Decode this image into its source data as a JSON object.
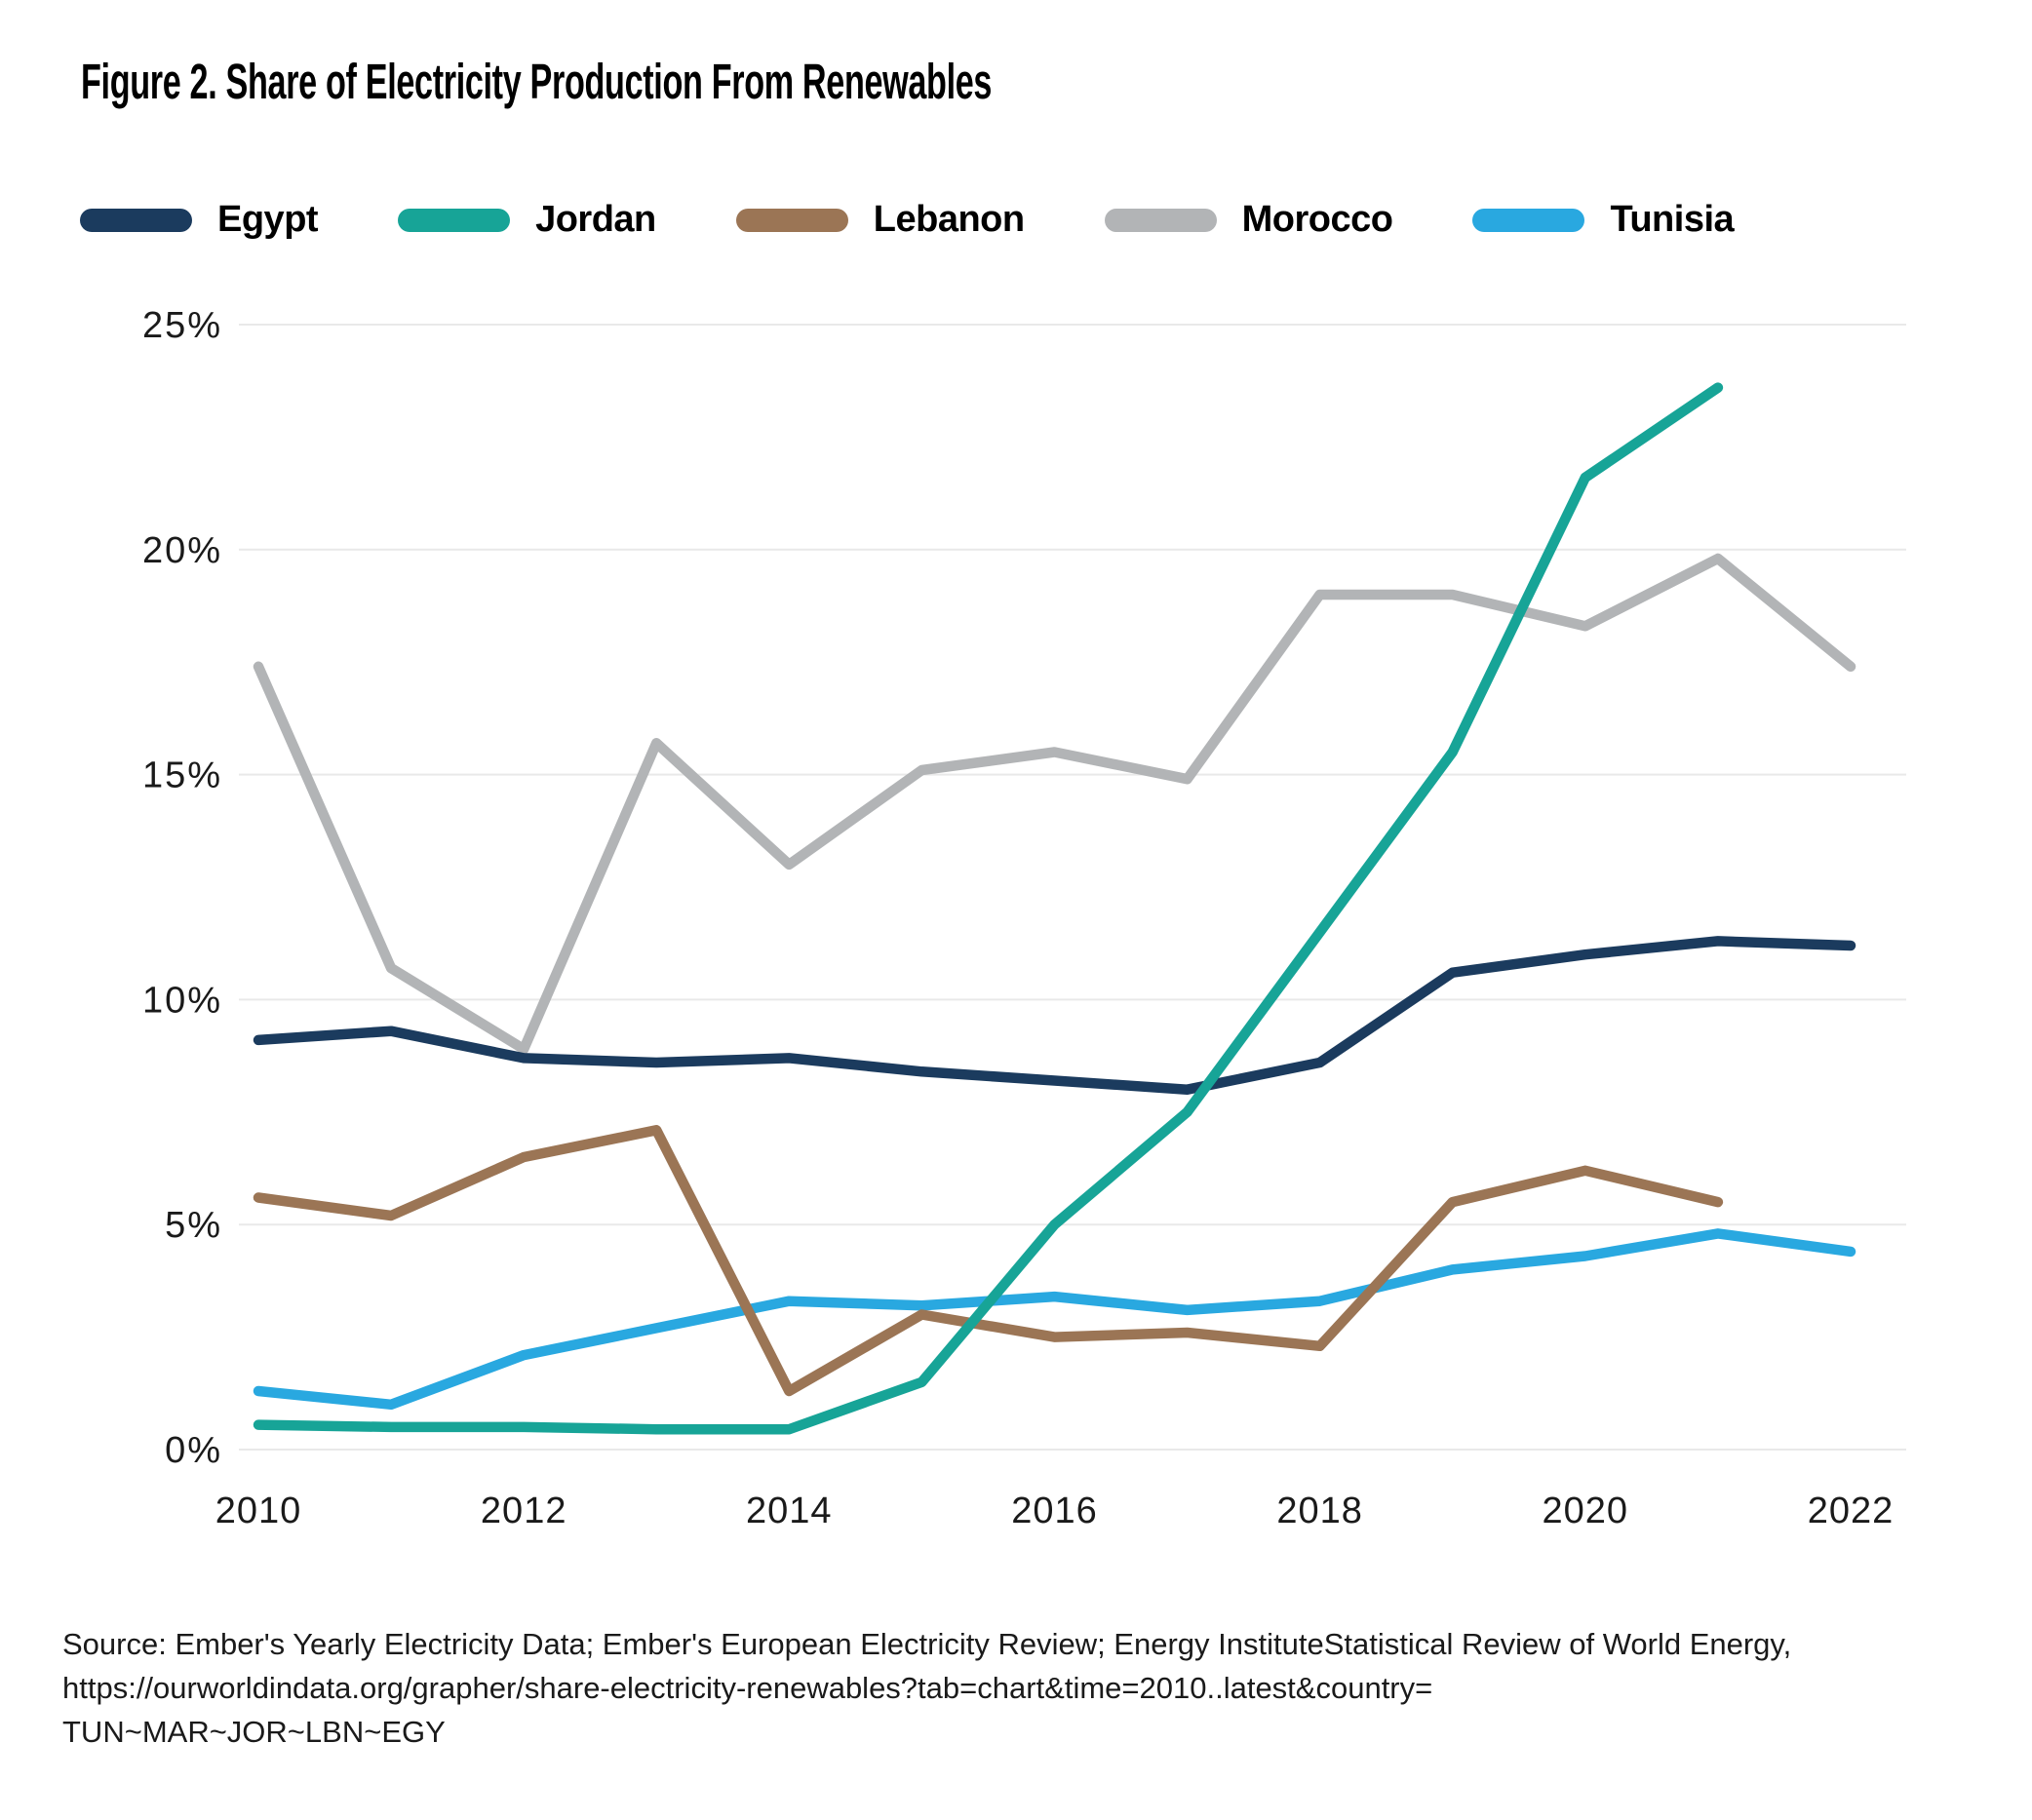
{
  "chart_data": {
    "type": "line",
    "title": "Figure 2. Share of Electricity Production From Renewables",
    "xlabel": "",
    "ylabel": "",
    "ylim": [
      0,
      25
    ],
    "grid": "horizontal",
    "legend_position": "top-left",
    "x": [
      2010,
      2011,
      2012,
      2013,
      2014,
      2015,
      2016,
      2017,
      2018,
      2019,
      2020,
      2021,
      2022
    ],
    "x_ticks": {
      "values": [
        2010,
        2012,
        2014,
        2016,
        2018,
        2020,
        2022
      ],
      "labels": [
        "2010",
        "2012",
        "2014",
        "2016",
        "2018",
        "2020",
        "2022"
      ]
    },
    "y_ticks": {
      "values": [
        0,
        5,
        10,
        15,
        20,
        25
      ],
      "labels": [
        "0%",
        "5%",
        "10%",
        "15%",
        "20%",
        "25%"
      ]
    },
    "series": [
      {
        "name": "Egypt",
        "color": "#1B3B5E",
        "values": [
          9.1,
          9.3,
          8.7,
          8.6,
          8.7,
          8.4,
          8.2,
          8.0,
          8.6,
          10.6,
          11.0,
          11.3,
          11.2
        ]
      },
      {
        "name": "Jordan",
        "color": "#17A497",
        "values": [
          0.55,
          0.5,
          0.5,
          0.45,
          0.45,
          1.5,
          5.0,
          7.5,
          11.5,
          15.5,
          21.6,
          23.6,
          null
        ]
      },
      {
        "name": "Lebanon",
        "color": "#9B7555",
        "values": [
          5.6,
          5.2,
          6.5,
          7.1,
          1.3,
          3.0,
          2.5,
          2.6,
          2.3,
          5.5,
          6.2,
          5.5,
          null
        ]
      },
      {
        "name": "Morocco",
        "color": "#B2B4B6",
        "values": [
          17.4,
          10.7,
          8.9,
          15.7,
          13.0,
          15.1,
          15.5,
          14.9,
          19.0,
          19.0,
          18.3,
          19.8,
          17.4
        ]
      },
      {
        "name": "Tunisia",
        "color": "#29A8E0",
        "values": [
          1.3,
          1.0,
          2.1,
          2.7,
          3.3,
          3.2,
          3.4,
          3.1,
          3.3,
          4.0,
          4.3,
          4.8,
          4.4
        ]
      }
    ],
    "gridline_color": "#E9E9E9"
  },
  "source": {
    "lines": [
      "Source: Ember's Yearly Electricity Data; Ember's European Electricity Review; Energy InstituteStatistical Review of World Energy,",
      "https://ourworldindata.org/grapher/share-electricity-renewables?tab=chart&time=2010..latest&country=",
      "TUN~MAR~JOR~LBN~EGY"
    ]
  }
}
